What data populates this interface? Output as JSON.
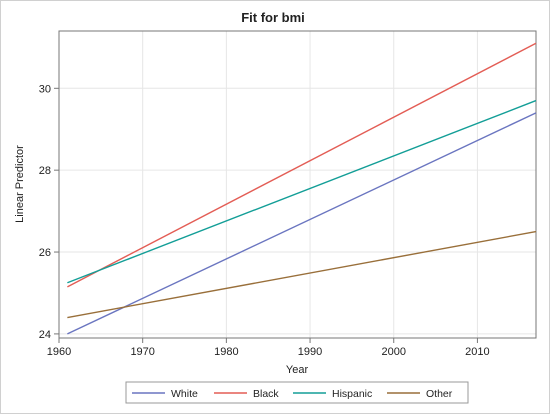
{
  "chart_data": {
    "type": "line",
    "title": "Fit for bmi",
    "xlabel": "Year",
    "ylabel": "Linear Predictor",
    "xlim": [
      1960,
      2017
    ],
    "ylim": [
      23.9,
      31.4
    ],
    "x_ticks": [
      1960,
      1970,
      1980,
      1990,
      2000,
      2010
    ],
    "y_ticks": [
      24,
      26,
      28,
      30
    ],
    "grid": true,
    "legend_position": "bottom",
    "series": [
      {
        "name": "White",
        "color": "#6A75C0",
        "x": [
          1961,
          2017
        ],
        "y": [
          24.0,
          29.4
        ]
      },
      {
        "name": "Black",
        "color": "#E35D55",
        "x": [
          1961,
          2017
        ],
        "y": [
          25.15,
          31.1
        ]
      },
      {
        "name": "Hispanic",
        "color": "#139E97",
        "x": [
          1961,
          2017
        ],
        "y": [
          25.25,
          29.7
        ]
      },
      {
        "name": "Other",
        "color": "#996F3A",
        "x": [
          1961,
          2017
        ],
        "y": [
          24.4,
          26.5
        ]
      }
    ]
  }
}
